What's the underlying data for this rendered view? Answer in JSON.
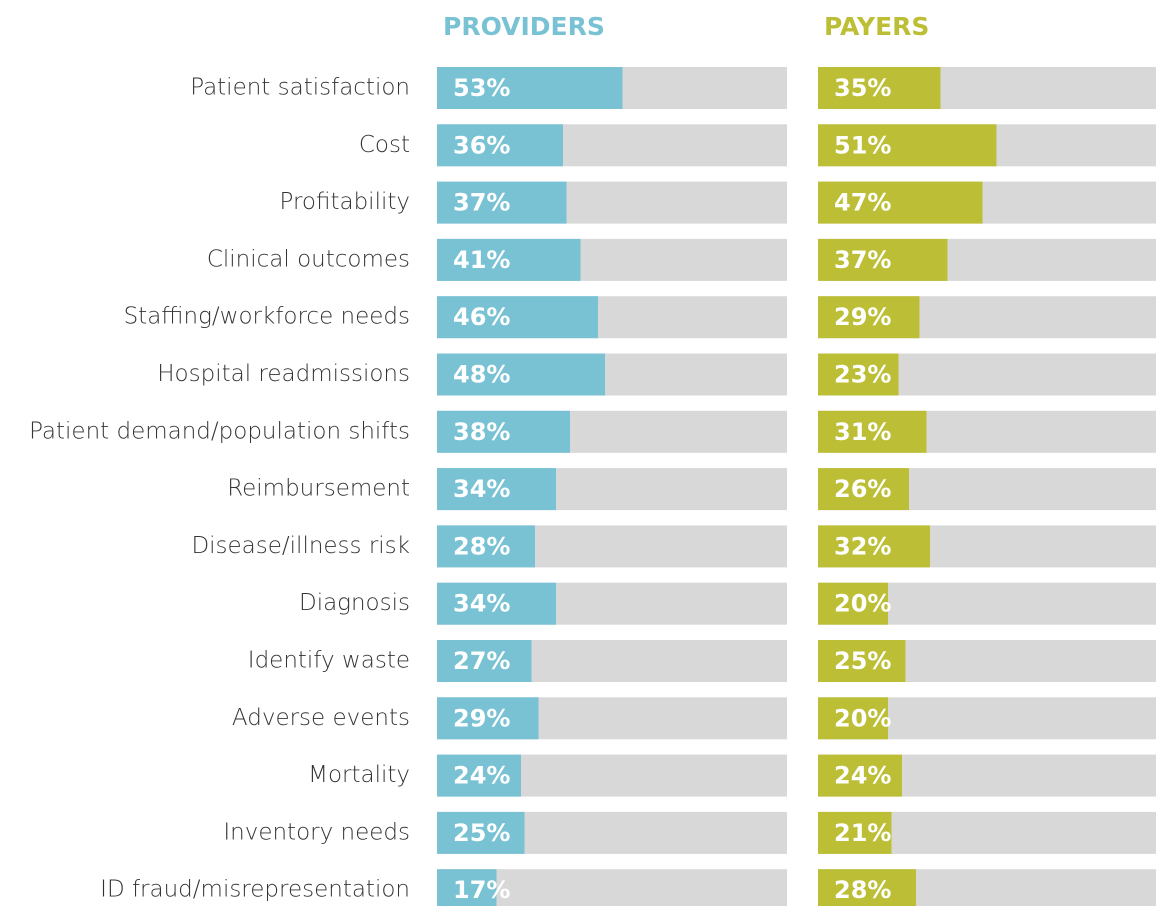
{
  "chart_data": {
    "type": "bar",
    "categories": [
      "Patient satisfaction",
      "Cost",
      "Profitability",
      "Clinical outcomes",
      "Staffing/workforce needs",
      "Hospital readmissions",
      "Patient demand/population shifts",
      "Reimbursement",
      "Disease/illness risk",
      "Diagnosis",
      "Identify waste",
      "Adverse events",
      "Mortality",
      "Inventory needs",
      "ID fraud/misrepresentation"
    ],
    "xlim": [
      0,
      100
    ],
    "track_color": "#d9d8d8",
    "series": [
      {
        "name": "PROVIDERS",
        "color": "#78c2d4",
        "values": [
          53,
          36,
          37,
          41,
          46,
          48,
          38,
          34,
          28,
          34,
          27,
          29,
          24,
          25,
          17
        ],
        "value_labels": [
          "53%",
          "36%",
          "37%",
          "41%",
          "46%",
          "48%",
          "38%",
          "34%",
          "28%",
          "34%",
          "27%",
          "29%",
          "24%",
          "25%",
          "17%"
        ]
      },
      {
        "name": "PAYERS",
        "color": "#bcbf36",
        "values": [
          35,
          51,
          47,
          37,
          29,
          23,
          31,
          26,
          32,
          20,
          25,
          20,
          24,
          21,
          28
        ],
        "value_labels": [
          "35%",
          "51%",
          "47%",
          "37%",
          "29%",
          "23%",
          "31%",
          "26%",
          "32%",
          "20%",
          "25%",
          "20%",
          "24%",
          "21%",
          "28%"
        ]
      }
    ]
  }
}
